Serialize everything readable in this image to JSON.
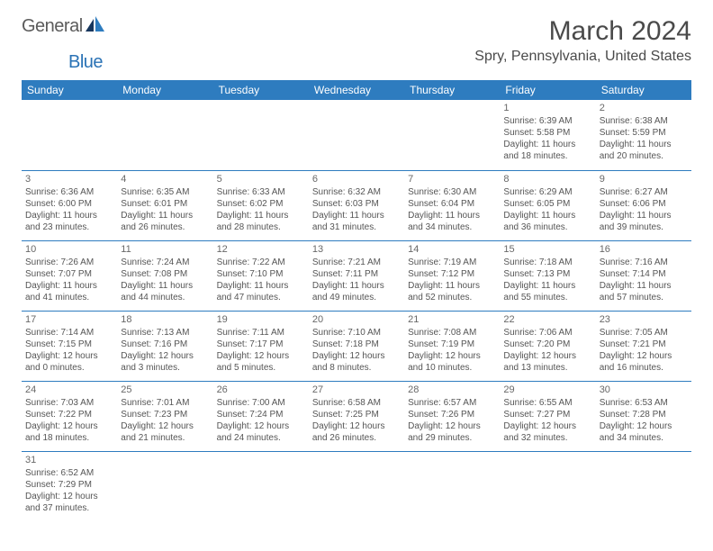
{
  "brand": {
    "part1": "General",
    "part2": "Blue"
  },
  "title": "March 2024",
  "location": "Spry, Pennsylvania, United States",
  "colors": {
    "header_bg": "#2e7cbf",
    "header_text": "#ffffff",
    "brand_gray": "#5b5b5b",
    "brand_blue": "#2a72b5",
    "border": "#2e7cbf",
    "text": "#555555",
    "title_color": "#4a4a4a"
  },
  "weekdays": [
    "Sunday",
    "Monday",
    "Tuesday",
    "Wednesday",
    "Thursday",
    "Friday",
    "Saturday"
  ],
  "weeks": [
    [
      null,
      null,
      null,
      null,
      null,
      {
        "n": "1",
        "sr": "Sunrise: 6:39 AM",
        "ss": "Sunset: 5:58 PM",
        "d1": "Daylight: 11 hours",
        "d2": "and 18 minutes."
      },
      {
        "n": "2",
        "sr": "Sunrise: 6:38 AM",
        "ss": "Sunset: 5:59 PM",
        "d1": "Daylight: 11 hours",
        "d2": "and 20 minutes."
      }
    ],
    [
      {
        "n": "3",
        "sr": "Sunrise: 6:36 AM",
        "ss": "Sunset: 6:00 PM",
        "d1": "Daylight: 11 hours",
        "d2": "and 23 minutes."
      },
      {
        "n": "4",
        "sr": "Sunrise: 6:35 AM",
        "ss": "Sunset: 6:01 PM",
        "d1": "Daylight: 11 hours",
        "d2": "and 26 minutes."
      },
      {
        "n": "5",
        "sr": "Sunrise: 6:33 AM",
        "ss": "Sunset: 6:02 PM",
        "d1": "Daylight: 11 hours",
        "d2": "and 28 minutes."
      },
      {
        "n": "6",
        "sr": "Sunrise: 6:32 AM",
        "ss": "Sunset: 6:03 PM",
        "d1": "Daylight: 11 hours",
        "d2": "and 31 minutes."
      },
      {
        "n": "7",
        "sr": "Sunrise: 6:30 AM",
        "ss": "Sunset: 6:04 PM",
        "d1": "Daylight: 11 hours",
        "d2": "and 34 minutes."
      },
      {
        "n": "8",
        "sr": "Sunrise: 6:29 AM",
        "ss": "Sunset: 6:05 PM",
        "d1": "Daylight: 11 hours",
        "d2": "and 36 minutes."
      },
      {
        "n": "9",
        "sr": "Sunrise: 6:27 AM",
        "ss": "Sunset: 6:06 PM",
        "d1": "Daylight: 11 hours",
        "d2": "and 39 minutes."
      }
    ],
    [
      {
        "n": "10",
        "sr": "Sunrise: 7:26 AM",
        "ss": "Sunset: 7:07 PM",
        "d1": "Daylight: 11 hours",
        "d2": "and 41 minutes."
      },
      {
        "n": "11",
        "sr": "Sunrise: 7:24 AM",
        "ss": "Sunset: 7:08 PM",
        "d1": "Daylight: 11 hours",
        "d2": "and 44 minutes."
      },
      {
        "n": "12",
        "sr": "Sunrise: 7:22 AM",
        "ss": "Sunset: 7:10 PM",
        "d1": "Daylight: 11 hours",
        "d2": "and 47 minutes."
      },
      {
        "n": "13",
        "sr": "Sunrise: 7:21 AM",
        "ss": "Sunset: 7:11 PM",
        "d1": "Daylight: 11 hours",
        "d2": "and 49 minutes."
      },
      {
        "n": "14",
        "sr": "Sunrise: 7:19 AM",
        "ss": "Sunset: 7:12 PM",
        "d1": "Daylight: 11 hours",
        "d2": "and 52 minutes."
      },
      {
        "n": "15",
        "sr": "Sunrise: 7:18 AM",
        "ss": "Sunset: 7:13 PM",
        "d1": "Daylight: 11 hours",
        "d2": "and 55 minutes."
      },
      {
        "n": "16",
        "sr": "Sunrise: 7:16 AM",
        "ss": "Sunset: 7:14 PM",
        "d1": "Daylight: 11 hours",
        "d2": "and 57 minutes."
      }
    ],
    [
      {
        "n": "17",
        "sr": "Sunrise: 7:14 AM",
        "ss": "Sunset: 7:15 PM",
        "d1": "Daylight: 12 hours",
        "d2": "and 0 minutes."
      },
      {
        "n": "18",
        "sr": "Sunrise: 7:13 AM",
        "ss": "Sunset: 7:16 PM",
        "d1": "Daylight: 12 hours",
        "d2": "and 3 minutes."
      },
      {
        "n": "19",
        "sr": "Sunrise: 7:11 AM",
        "ss": "Sunset: 7:17 PM",
        "d1": "Daylight: 12 hours",
        "d2": "and 5 minutes."
      },
      {
        "n": "20",
        "sr": "Sunrise: 7:10 AM",
        "ss": "Sunset: 7:18 PM",
        "d1": "Daylight: 12 hours",
        "d2": "and 8 minutes."
      },
      {
        "n": "21",
        "sr": "Sunrise: 7:08 AM",
        "ss": "Sunset: 7:19 PM",
        "d1": "Daylight: 12 hours",
        "d2": "and 10 minutes."
      },
      {
        "n": "22",
        "sr": "Sunrise: 7:06 AM",
        "ss": "Sunset: 7:20 PM",
        "d1": "Daylight: 12 hours",
        "d2": "and 13 minutes."
      },
      {
        "n": "23",
        "sr": "Sunrise: 7:05 AM",
        "ss": "Sunset: 7:21 PM",
        "d1": "Daylight: 12 hours",
        "d2": "and 16 minutes."
      }
    ],
    [
      {
        "n": "24",
        "sr": "Sunrise: 7:03 AM",
        "ss": "Sunset: 7:22 PM",
        "d1": "Daylight: 12 hours",
        "d2": "and 18 minutes."
      },
      {
        "n": "25",
        "sr": "Sunrise: 7:01 AM",
        "ss": "Sunset: 7:23 PM",
        "d1": "Daylight: 12 hours",
        "d2": "and 21 minutes."
      },
      {
        "n": "26",
        "sr": "Sunrise: 7:00 AM",
        "ss": "Sunset: 7:24 PM",
        "d1": "Daylight: 12 hours",
        "d2": "and 24 minutes."
      },
      {
        "n": "27",
        "sr": "Sunrise: 6:58 AM",
        "ss": "Sunset: 7:25 PM",
        "d1": "Daylight: 12 hours",
        "d2": "and 26 minutes."
      },
      {
        "n": "28",
        "sr": "Sunrise: 6:57 AM",
        "ss": "Sunset: 7:26 PM",
        "d1": "Daylight: 12 hours",
        "d2": "and 29 minutes."
      },
      {
        "n": "29",
        "sr": "Sunrise: 6:55 AM",
        "ss": "Sunset: 7:27 PM",
        "d1": "Daylight: 12 hours",
        "d2": "and 32 minutes."
      },
      {
        "n": "30",
        "sr": "Sunrise: 6:53 AM",
        "ss": "Sunset: 7:28 PM",
        "d1": "Daylight: 12 hours",
        "d2": "and 34 minutes."
      }
    ],
    [
      {
        "n": "31",
        "sr": "Sunrise: 6:52 AM",
        "ss": "Sunset: 7:29 PM",
        "d1": "Daylight: 12 hours",
        "d2": "and 37 minutes."
      },
      null,
      null,
      null,
      null,
      null,
      null
    ]
  ]
}
